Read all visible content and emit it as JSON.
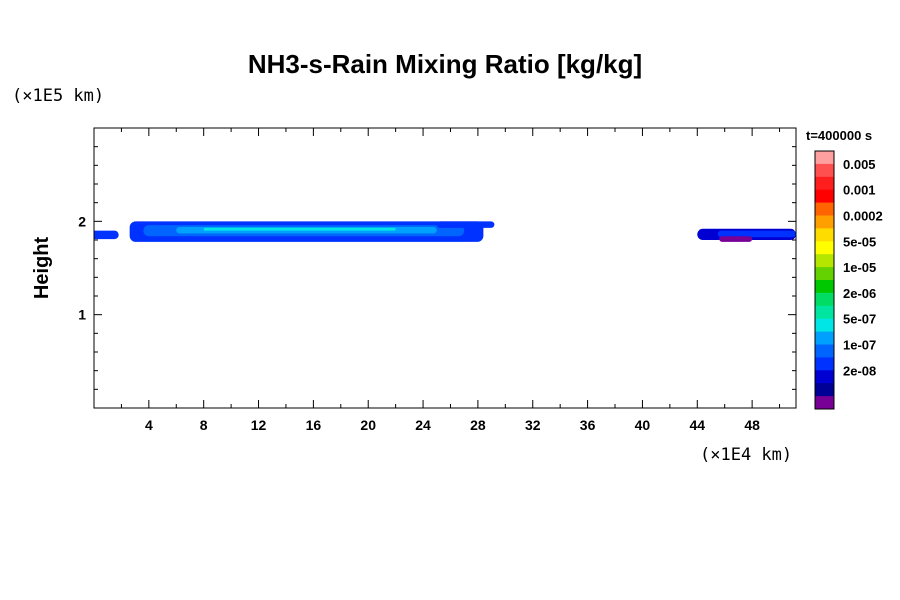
{
  "chart_data": {
    "type": "heatmap",
    "title": "NH3-s-Rain Mixing Ratio [kg/kg]",
    "ylabel": "Height",
    "xunit": "(×1E4 km)",
    "yunit": "(×1E5 km)",
    "time_label": "t=400000 s",
    "xlim": [
      0,
      51.2
    ],
    "ylim": [
      0,
      3
    ],
    "x_ticks": [
      4,
      8,
      12,
      16,
      20,
      24,
      28,
      32,
      36,
      40,
      44,
      48
    ],
    "x_tick_labels": [
      "4",
      "8",
      "12",
      "16",
      "20",
      "24",
      "28",
      "32",
      "36",
      "40",
      "44",
      "48"
    ],
    "y_ticks": [
      1,
      2
    ],
    "y_tick_labels": [
      "1",
      "2"
    ],
    "colorbar": {
      "colors": [
        "#ffa0a0",
        "#ff5050",
        "#ff1e1e",
        "#ff0000",
        "#ff6400",
        "#ffa000",
        "#ffdc00",
        "#ffff00",
        "#b4e600",
        "#64d200",
        "#00c800",
        "#00dc64",
        "#00e6a0",
        "#00e6e6",
        "#00a0ff",
        "#0064ff",
        "#0032ff",
        "#0000d2",
        "#000096",
        "#780096"
      ],
      "labels": [
        "0.005",
        "0.001",
        "0.0002",
        "5e-05",
        "1e-05",
        "2e-06",
        "5e-07",
        "1e-07",
        "2e-08"
      ]
    },
    "bands": [
      {
        "x": [
          -0.3,
          1.8
        ],
        "y": [
          1.81,
          1.9
        ],
        "color": "#0032ff"
      },
      {
        "x": [
          2.6,
          28.4
        ],
        "y": [
          1.78,
          2.0
        ],
        "color": "#0032ff"
      },
      {
        "x": [
          3.6,
          27.0
        ],
        "y": [
          1.84,
          1.96
        ],
        "color": "#0064ff"
      },
      {
        "x": [
          6.0,
          25.0
        ],
        "y": [
          1.87,
          1.94
        ],
        "color": "#00a0ff"
      },
      {
        "x": [
          8.0,
          22.0
        ],
        "y": [
          1.9,
          1.93
        ],
        "color": "#00e6e6"
      },
      {
        "x": [
          25.0,
          29.2
        ],
        "y": [
          1.93,
          2.0
        ],
        "color": "#0032ff"
      },
      {
        "x": [
          44.0,
          51.2
        ],
        "y": [
          1.8,
          1.92
        ],
        "color": "#0000d2"
      },
      {
        "x": [
          45.5,
          51.2
        ],
        "y": [
          1.83,
          1.9
        ],
        "color": "#0032ff"
      },
      {
        "x": [
          45.6,
          48.0
        ],
        "y": [
          1.78,
          1.84
        ],
        "color": "#780096"
      }
    ]
  }
}
